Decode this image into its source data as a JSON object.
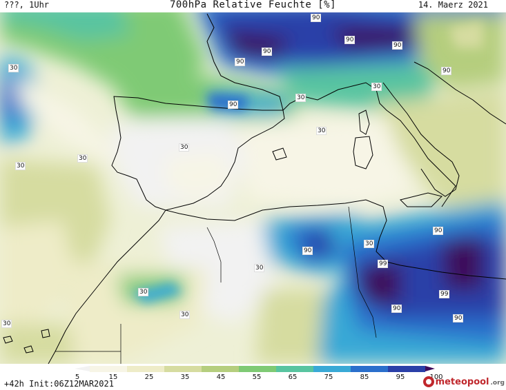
{
  "header": {
    "left_label": "???, 1Uhr",
    "title": "700hPa Relative Feuchte [%]",
    "date": "14. Maerz 2021"
  },
  "footer": {
    "forecast_label": "+42h Init:06Z12MAR2021",
    "brand_main": "meteopool",
    "brand_tld": ".org"
  },
  "legend": {
    "ticks": [
      "5",
      "15",
      "25",
      "35",
      "45",
      "55",
      "65",
      "75",
      "85",
      "95",
      "100"
    ],
    "colors": [
      "#f2f2f2",
      "#f7f5e6",
      "#eeecc8",
      "#d6dca0",
      "#b5ce7e",
      "#7fca74",
      "#58c4a0",
      "#39a9d6",
      "#2a6fcc",
      "#2a3fa8",
      "#3d0a5a"
    ]
  },
  "contour_labels": [
    "90",
    "90",
    "90",
    "90",
    "90",
    "90",
    "30",
    "90",
    "30",
    "30",
    "30",
    "30",
    "30",
    "30",
    "30",
    "30",
    "90",
    "30",
    "90",
    "99",
    "99",
    "90",
    "90",
    "30",
    "30",
    "30"
  ]
}
